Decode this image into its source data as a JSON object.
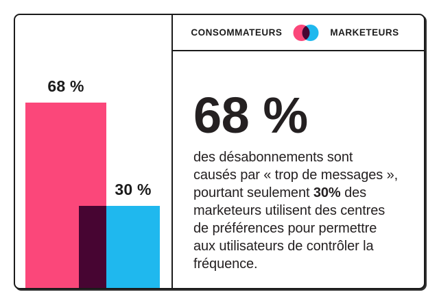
{
  "legend": {
    "left_label": "CONSOMMATEURS",
    "right_label": "MARKETEURS"
  },
  "colors": {
    "consumers": "#FB477A",
    "marketers": "#1FB8EE",
    "overlap": "#470532",
    "text": "#242021",
    "border": "#1a1a1a",
    "background": "#ffffff"
  },
  "chart_data": {
    "type": "bar",
    "title": "",
    "categories": [
      "Consommateurs",
      "Marketeurs"
    ],
    "values": [
      68,
      30
    ],
    "value_labels": [
      "68 %",
      "30 %"
    ],
    "unit": "%",
    "ylim": [
      0,
      100
    ],
    "orientation": "vertical",
    "axes": "none",
    "grid": false,
    "style": "two overlapping bars, value labels above bars, overlap region dark plum",
    "series_colors": [
      "#FB477A",
      "#1FB8EE"
    ],
    "overlap_color": "#470532",
    "legend_position": "top of right panel"
  },
  "stat": {
    "headline": "68 %",
    "body": {
      "l1": "des désabonnements sont",
      "l2": "causés par « trop de messages »,",
      "l3a": "pourtant seulement ",
      "l3b": "30%",
      "l3c": " des",
      "l4": "marketeurs utilisent des centres",
      "l5": "de préférences pour permettre",
      "l6": "aux utilisateurs de contrôler la",
      "l7": "fréquence."
    }
  }
}
